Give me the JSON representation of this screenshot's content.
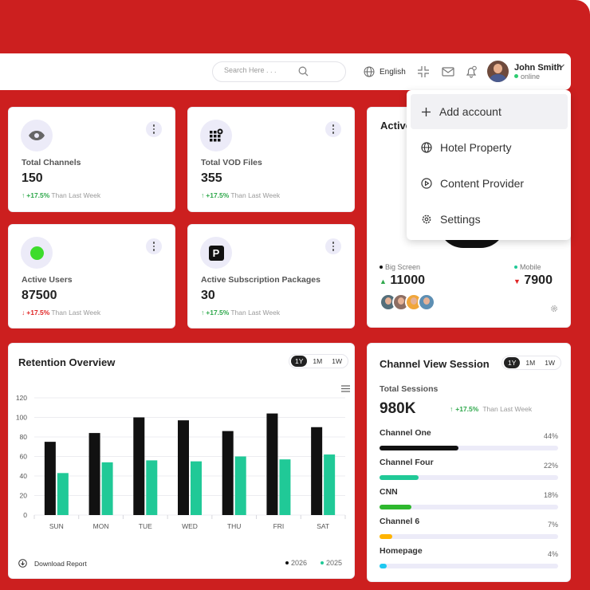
{
  "header": {
    "search_placeholder": "Search Here . . .",
    "language": "English",
    "user": {
      "name": "John Smith",
      "status": "online"
    }
  },
  "stats": [
    {
      "label": "Total Channels",
      "value": "150",
      "change": "+17.5%",
      "direction": "up",
      "period": "Than Last Week",
      "icon": "eye-icon"
    },
    {
      "label": "Total VOD Files",
      "value": "355",
      "change": "+17.5%",
      "direction": "up",
      "period": "Than Last Week",
      "icon": "grid-lock-icon"
    },
    {
      "label": "Active Users",
      "value": "87500",
      "change": "+17.5%",
      "direction": "down",
      "period": "Than Last Week",
      "icon": "green-dot-icon"
    },
    {
      "label": "Active Subscription Packages",
      "value": "30",
      "change": "+17.5%",
      "direction": "up",
      "period": "Than Last Week",
      "icon": "parking-icon"
    }
  ],
  "account_menu": {
    "items": [
      {
        "label": "Add account",
        "icon": "plus-icon"
      },
      {
        "label": "Hotel Property",
        "icon": "globe-icon"
      },
      {
        "label": "Content Provider",
        "icon": "play-circle-icon"
      },
      {
        "label": "Settings",
        "icon": "gear-icon"
      }
    ]
  },
  "active_card": {
    "title": "Active",
    "big_screen": {
      "label": "Big Screen",
      "value": "11000",
      "direction": "up"
    },
    "mobile": {
      "label": "Mobile",
      "value": "7900",
      "direction": "down"
    }
  },
  "retention": {
    "title": "Retention Overview",
    "ranges": [
      "1Y",
      "1M",
      "1W"
    ],
    "selected_range": "1Y",
    "download_label": "Download Report"
  },
  "chart_data": {
    "type": "bar",
    "categories": [
      "SUN",
      "MON",
      "TUE",
      "WED",
      "THU",
      "FRI",
      "SAT"
    ],
    "series": [
      {
        "name": "2026",
        "color": "#111111",
        "values": [
          75,
          84,
          100,
          97,
          86,
          104,
          90
        ]
      },
      {
        "name": "2025",
        "color": "#20c997",
        "values": [
          43,
          54,
          56,
          55,
          60,
          57,
          62
        ]
      }
    ],
    "yticks": [
      0,
      20,
      40,
      60,
      80,
      100,
      120
    ],
    "ylim": [
      0,
      120
    ],
    "grid": true,
    "legend_position": "bottom-right"
  },
  "sessions": {
    "title": "Channel View Session",
    "ranges": [
      "1Y",
      "1M",
      "1W"
    ],
    "selected_range": "1Y",
    "total_label": "Total Sessions",
    "total_value": "980K",
    "change": "+17.5%",
    "period": "Than Last Week",
    "channels": [
      {
        "name": "Channel One",
        "percent": "44%",
        "fraction": 0.44,
        "color": "#111111"
      },
      {
        "name": "Channel Four",
        "percent": "22%",
        "fraction": 0.22,
        "color": "#20c997"
      },
      {
        "name": "CNN",
        "percent": "18%",
        "fraction": 0.18,
        "color": "#2eb82e"
      },
      {
        "name": "Channel 6",
        "percent": "7%",
        "fraction": 0.07,
        "color": "#ffb400"
      },
      {
        "name": "Homepage",
        "percent": "4%",
        "fraction": 0.04,
        "color": "#1ec8f0"
      }
    ]
  }
}
